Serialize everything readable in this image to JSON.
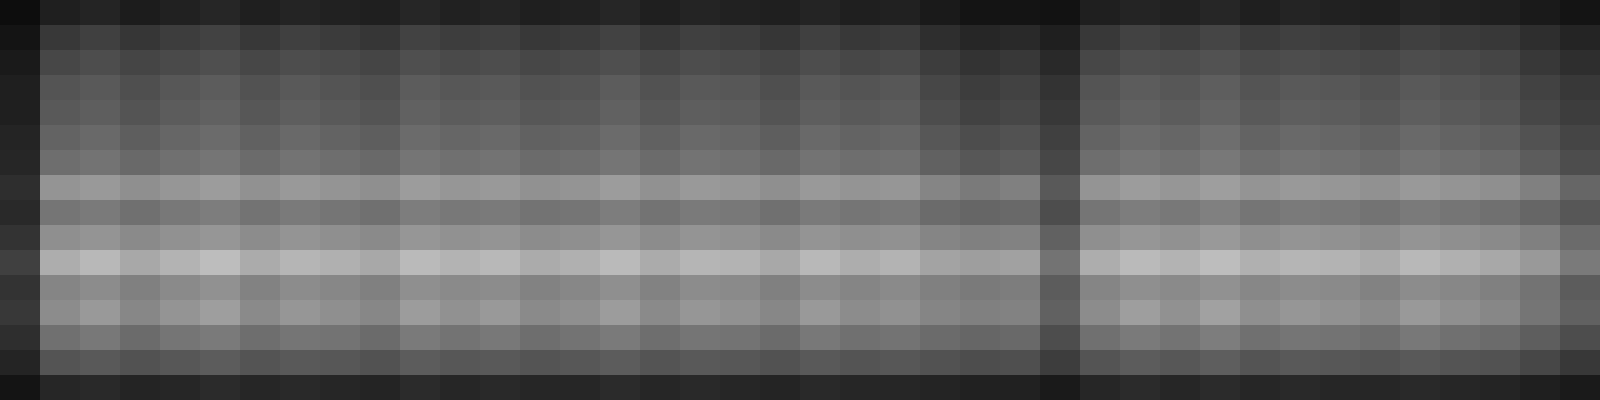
{
  "chart_data": {
    "type": "heatmap",
    "tick_labels": false,
    "zlim": [
      0,
      100
    ],
    "cells": [
      [
        5,
        12,
        14,
        11,
        13,
        15,
        12,
        14,
        13,
        12,
        15,
        13,
        14,
        12,
        13,
        15,
        12,
        14,
        13,
        12,
        14,
        12,
        13,
        10,
        8,
        8,
        7,
        12,
        14,
        13,
        15,
        12,
        14,
        13,
        12,
        14,
        13,
        12,
        10,
        8
      ],
      [
        8,
        22,
        25,
        21,
        24,
        26,
        22,
        25,
        23,
        21,
        26,
        24,
        25,
        22,
        23,
        26,
        22,
        25,
        24,
        21,
        25,
        22,
        23,
        18,
        15,
        16,
        12,
        22,
        26,
        24,
        27,
        23,
        25,
        24,
        22,
        25,
        23,
        22,
        18,
        14
      ],
      [
        10,
        28,
        30,
        27,
        29,
        31,
        28,
        30,
        29,
        27,
        31,
        29,
        30,
        28,
        29,
        31,
        28,
        30,
        29,
        27,
        30,
        28,
        29,
        24,
        20,
        22,
        16,
        28,
        31,
        30,
        32,
        29,
        30,
        29,
        28,
        30,
        29,
        27,
        22,
        18
      ],
      [
        12,
        33,
        35,
        31,
        34,
        36,
        32,
        35,
        33,
        31,
        36,
        34,
        35,
        32,
        33,
        36,
        32,
        35,
        34,
        31,
        35,
        33,
        34,
        28,
        24,
        26,
        20,
        33,
        36,
        34,
        37,
        33,
        35,
        34,
        32,
        35,
        33,
        31,
        26,
        22
      ],
      [
        12,
        35,
        37,
        33,
        36,
        38,
        34,
        37,
        35,
        33,
        38,
        36,
        37,
        34,
        35,
        38,
        34,
        37,
        36,
        33,
        37,
        35,
        36,
        30,
        26,
        28,
        22,
        35,
        38,
        36,
        39,
        35,
        37,
        36,
        34,
        37,
        35,
        33,
        28,
        24
      ],
      [
        14,
        39,
        41,
        37,
        40,
        42,
        38,
        41,
        39,
        37,
        42,
        40,
        41,
        38,
        39,
        42,
        38,
        41,
        40,
        37,
        41,
        39,
        40,
        34,
        30,
        32,
        25,
        39,
        42,
        40,
        43,
        39,
        41,
        40,
        38,
        41,
        39,
        37,
        32,
        27
      ],
      [
        15,
        43,
        45,
        41,
        44,
        46,
        42,
        45,
        43,
        41,
        46,
        44,
        45,
        42,
        43,
        46,
        42,
        45,
        44,
        41,
        45,
        43,
        44,
        38,
        34,
        36,
        28,
        43,
        46,
        44,
        47,
        43,
        45,
        44,
        42,
        45,
        43,
        41,
        36,
        30
      ],
      [
        18,
        58,
        60,
        56,
        59,
        61,
        57,
        60,
        58,
        56,
        61,
        59,
        60,
        57,
        58,
        61,
        57,
        60,
        59,
        56,
        60,
        58,
        59,
        52,
        48,
        50,
        35,
        58,
        61,
        59,
        62,
        58,
        60,
        59,
        57,
        60,
        58,
        56,
        50,
        40
      ],
      [
        16,
        46,
        48,
        44,
        47,
        49,
        45,
        48,
        46,
        44,
        49,
        47,
        48,
        45,
        46,
        49,
        45,
        48,
        47,
        44,
        48,
        46,
        47,
        42,
        40,
        41,
        30,
        46,
        49,
        47,
        50,
        46,
        48,
        47,
        45,
        48,
        46,
        44,
        40,
        34
      ],
      [
        20,
        56,
        58,
        54,
        57,
        59,
        55,
        58,
        56,
        54,
        59,
        57,
        58,
        55,
        56,
        59,
        55,
        58,
        57,
        54,
        58,
        56,
        57,
        52,
        50,
        51,
        38,
        56,
        59,
        57,
        60,
        56,
        58,
        57,
        55,
        58,
        56,
        54,
        50,
        42
      ],
      [
        25,
        68,
        72,
        66,
        70,
        74,
        67,
        71,
        69,
        66,
        73,
        70,
        72,
        67,
        69,
        73,
        67,
        71,
        70,
        66,
        72,
        68,
        70,
        64,
        62,
        63,
        45,
        68,
        73,
        70,
        74,
        69,
        71,
        70,
        67,
        72,
        69,
        66,
        60,
        48
      ],
      [
        20,
        52,
        55,
        50,
        54,
        57,
        51,
        55,
        53,
        50,
        56,
        54,
        55,
        51,
        53,
        56,
        51,
        55,
        54,
        50,
        55,
        52,
        54,
        50,
        48,
        49,
        36,
        52,
        56,
        54,
        57,
        53,
        55,
        54,
        51,
        55,
        53,
        50,
        45,
        36
      ],
      [
        22,
        55,
        60,
        53,
        58,
        62,
        54,
        59,
        56,
        53,
        61,
        57,
        60,
        54,
        56,
        61,
        54,
        59,
        57,
        53,
        60,
        55,
        57,
        52,
        50,
        51,
        38,
        55,
        62,
        57,
        63,
        56,
        59,
        57,
        54,
        60,
        56,
        53,
        46,
        38
      ],
      [
        18,
        44,
        47,
        42,
        46,
        48,
        43,
        46,
        45,
        42,
        48,
        45,
        47,
        43,
        45,
        48,
        43,
        46,
        45,
        42,
        47,
        44,
        45,
        42,
        40,
        41,
        30,
        44,
        48,
        45,
        49,
        44,
        46,
        45,
        43,
        47,
        44,
        42,
        37,
        30
      ],
      [
        14,
        33,
        35,
        32,
        34,
        36,
        33,
        35,
        34,
        32,
        36,
        34,
        35,
        33,
        34,
        36,
        33,
        35,
        34,
        32,
        35,
        33,
        34,
        32,
        30,
        31,
        24,
        33,
        36,
        34,
        37,
        33,
        35,
        34,
        33,
        35,
        33,
        32,
        28,
        22
      ],
      [
        8,
        15,
        16,
        14,
        15,
        17,
        15,
        16,
        15,
        14,
        17,
        15,
        16,
        15,
        15,
        17,
        15,
        16,
        15,
        14,
        16,
        15,
        15,
        14,
        13,
        13,
        10,
        15,
        17,
        15,
        17,
        15,
        16,
        15,
        15,
        16,
        15,
        14,
        12,
        10
      ]
    ]
  }
}
